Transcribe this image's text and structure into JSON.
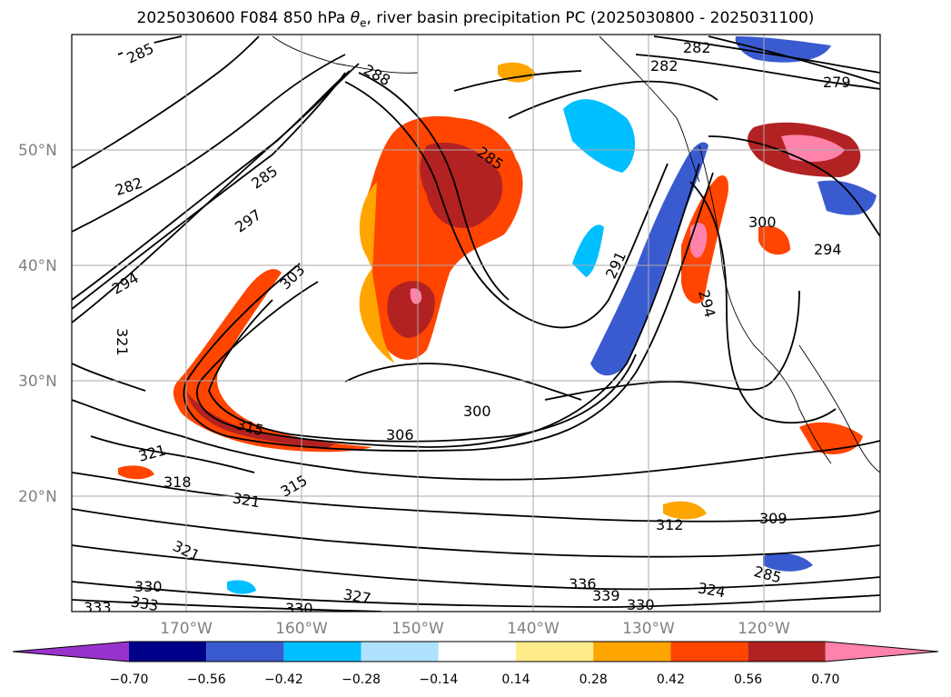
{
  "title_prefix": "2025030600 F084 850 hPa ",
  "title_symbol": "θ",
  "title_subscript": "e",
  "title_suffix": ", river basin precipitation PC (2025030800 - 2025031100)",
  "lat_labels": [
    "50°N",
    "40°N",
    "30°N",
    "20°N"
  ],
  "lon_labels": [
    "170°W",
    "160°W",
    "150°W",
    "140°W",
    "130°W",
    "120°W"
  ],
  "contour_labels": [
    "285",
    "288",
    "282",
    "285",
    "282",
    "297",
    "294",
    "303",
    "291",
    "285",
    "279",
    "282",
    "300",
    "294",
    "294",
    "321",
    "300",
    "306",
    "315",
    "321",
    "318",
    "321",
    "315",
    "312",
    "309",
    "321",
    "330",
    "333",
    "327",
    "330",
    "333",
    "336",
    "339",
    "330",
    "324",
    "285"
  ],
  "colorbar": {
    "tick_labels": [
      "−0.70",
      "−0.56",
      "−0.42",
      "−0.28",
      "−0.14",
      "0.14",
      "0.28",
      "0.42",
      "0.56",
      "0.70"
    ],
    "colors": [
      "#9932cc",
      "#00008b",
      "#3a5bd0",
      "#00bfff",
      "#b0e2ff",
      "#ffffff",
      "#ffec8b",
      "#ffa500",
      "#ff4500",
      "#b22222",
      "#ff82ab"
    ]
  }
}
